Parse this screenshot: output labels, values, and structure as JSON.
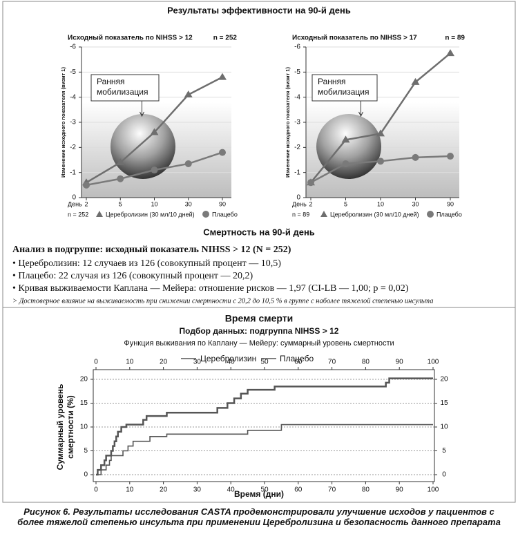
{
  "heading": "Результаты эффективности на 90-й день",
  "mortality": {
    "title": "Смертность на 90-й день",
    "subgroup": "Анализ в подгруппе: исходный показатель NIHSS > 12 (N = 252)",
    "bullets": [
      "• Церебролизин: 12 случаев из 126 (совокупный процент — 10,5)",
      "• Плацебо: 22 случая из 126 (совокупный процент — 20,2)",
      "• Кривая выживаемости Каплана — Мейера: отношение рисков — 1,97 (CI-LB — 1,00; p = 0,02)"
    ],
    "note": "> Достоверное влияние на выживаемость при снижении смертности с 20,2 до 10,5 % в группе с наболее тяжелой степенью инсульта"
  },
  "caption": "Рисунок 6. Результаты исследования CASTA продемонстрировали улучшение исходов у пациентов с более тяжелой степенью инсульта при применении Церебролизина и безопасность данного препарата",
  "chart_data": [
    {
      "type": "line",
      "subtitle": "Исходный показатель по NIHSS > 12",
      "n_top": "n = 252",
      "n_bottom": "n = 252",
      "xlabel": "День",
      "ylabel": "Изменение исходного показателя (визит 1)",
      "annotation": [
        "Ранняя",
        "мобилизация"
      ],
      "categories": [
        "2",
        "5",
        "10",
        "30",
        "90"
      ],
      "ylim": [
        0,
        -6
      ],
      "yticks": [
        0,
        -1,
        -2,
        -3,
        -4,
        -5,
        -6
      ],
      "grid": true,
      "series": [
        {
          "name": "Церебролизин (30 мл/10 дней)",
          "color": "#6e6e6e",
          "marker": "triangle",
          "values": [
            -0.6,
            -1.4,
            -2.6,
            -4.1,
            -4.8
          ]
        },
        {
          "name": "Плацебо",
          "color": "#7a7a7a",
          "marker": "circle",
          "values": [
            -0.5,
            -0.75,
            -1.1,
            -1.35,
            -1.8
          ]
        }
      ]
    },
    {
      "type": "line",
      "subtitle": "Исходный показатель по NIHSS > 17",
      "n_top": "n = 89",
      "n_bottom": "n = 89",
      "xlabel": "День",
      "ylabel": "Изменение исходного показателя (визит 1)",
      "annotation": [
        "Ранняя",
        "мобилизация"
      ],
      "categories": [
        "2",
        "5",
        "10",
        "30",
        "90"
      ],
      "ylim": [
        0,
        -6
      ],
      "yticks": [
        0,
        -1,
        -2,
        -3,
        -4,
        -5,
        -6
      ],
      "grid": true,
      "series": [
        {
          "name": "Церебролизин (30 мл/10 дней)",
          "color": "#6e6e6e",
          "marker": "triangle",
          "values": [
            -0.6,
            -2.3,
            -2.55,
            -4.6,
            -5.75
          ]
        },
        {
          "name": "Плацебо",
          "color": "#7a7a7a",
          "marker": "circle",
          "values": [
            -0.6,
            -1.35,
            -1.45,
            -1.6,
            -1.65
          ]
        }
      ]
    },
    {
      "type": "step",
      "title": "Время смерти",
      "subtitle": [
        "Подбор данных: подгруппа NIHSS > 12",
        "Функция выживания по Каплану — Мейеру: суммарный уровень смертности"
      ],
      "xlabel": "Время (дни)",
      "ylabel": [
        "Суммарный уровень",
        "смертности (%)"
      ],
      "xlim": [
        0,
        100
      ],
      "xticks": [
        0,
        10,
        20,
        30,
        40,
        50,
        60,
        70,
        80,
        90,
        100
      ],
      "ylim": [
        0,
        20
      ],
      "yticks": [
        0,
        5,
        10,
        15,
        20
      ],
      "grid": true,
      "series": [
        {
          "name": "Церебролизин",
          "color": "#555555",
          "x": [
            0,
            1.5,
            3,
            4,
            4.5,
            8,
            9.5,
            11,
            16,
            21,
            45,
            55,
            100
          ],
          "values": [
            0,
            1,
            2,
            3,
            4,
            5,
            6,
            7,
            8,
            8.5,
            9.3,
            10.5,
            10.5
          ]
        },
        {
          "name": "Плацебо",
          "color": "#555555",
          "x": [
            0,
            0.5,
            1.5,
            2.5,
            3,
            4.5,
            5,
            5.5,
            6,
            6.5,
            7.5,
            9,
            14,
            15,
            21,
            36,
            39,
            41,
            43,
            45,
            53,
            86,
            87,
            100
          ],
          "values": [
            0,
            1,
            2,
            3,
            4,
            5,
            6,
            7,
            8,
            9,
            10,
            10.5,
            11.5,
            12.3,
            13,
            14,
            15,
            16,
            17,
            17.8,
            18.5,
            19.3,
            20.2,
            20.2
          ]
        }
      ]
    }
  ]
}
